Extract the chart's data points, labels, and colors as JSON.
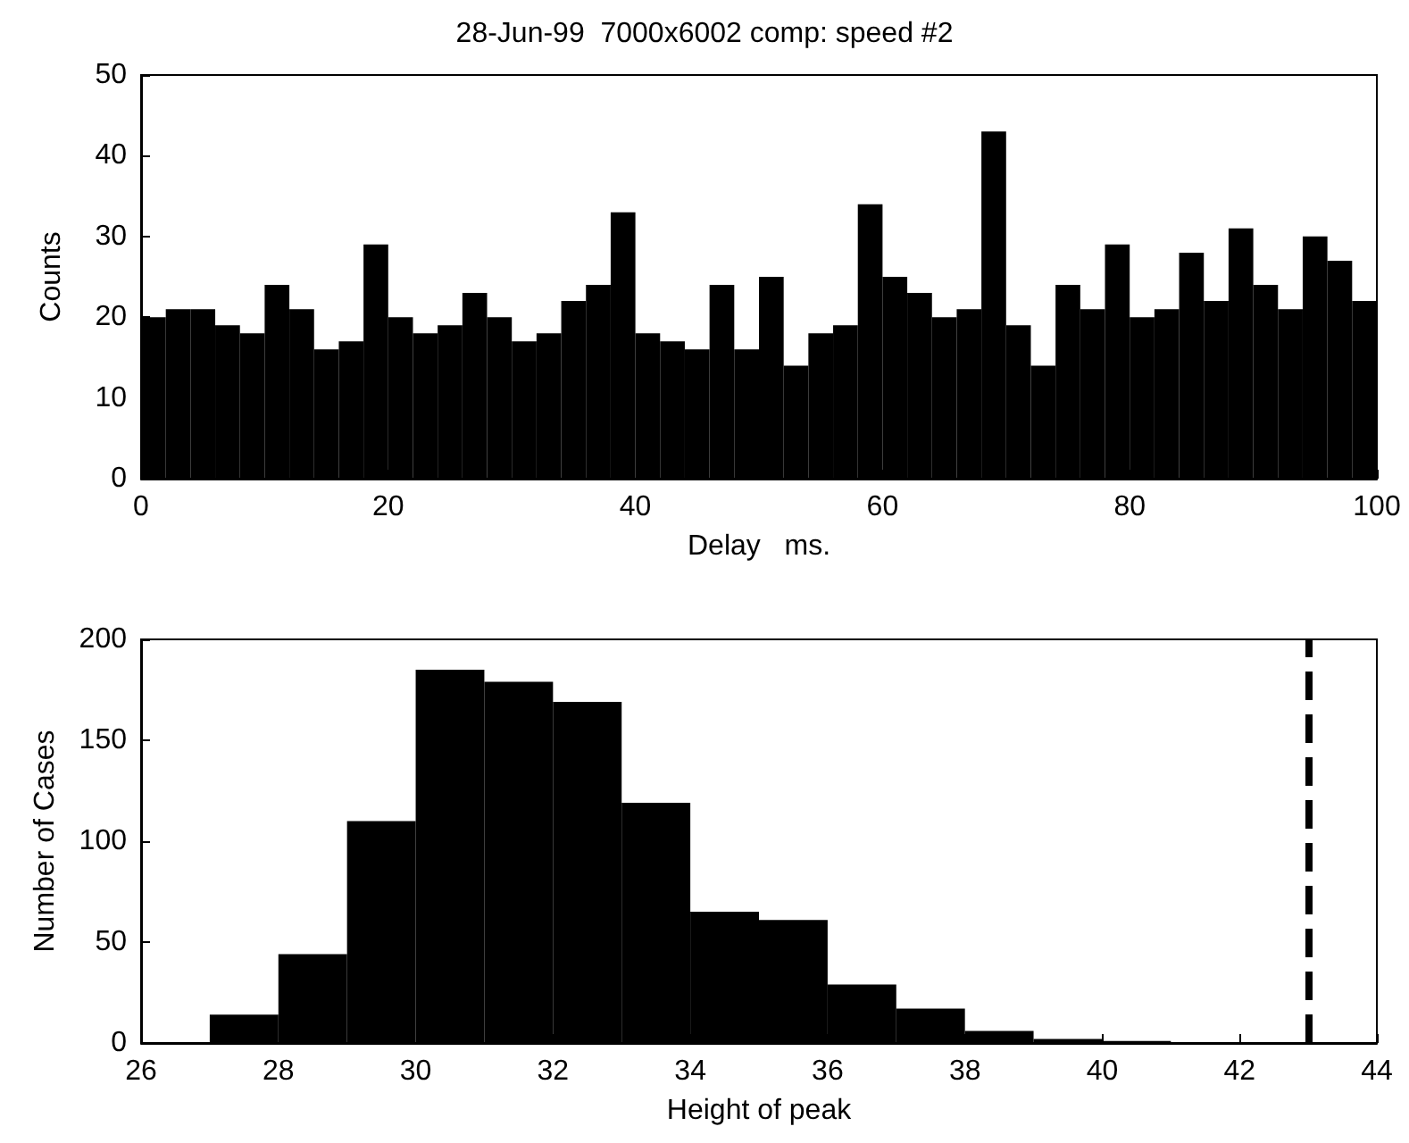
{
  "chart_data": [
    {
      "type": "histogram",
      "title": "28-Jun-99  7000x6002 comp: speed #2",
      "xlabel": "Delay   ms.",
      "ylabel": "Counts",
      "color": "#000000",
      "bins": [
        0,
        2,
        4,
        6,
        8,
        10,
        12,
        14,
        16,
        18,
        20,
        22,
        24,
        26,
        28,
        30,
        32,
        34,
        36,
        38,
        40,
        42,
        44,
        46,
        48,
        50,
        52,
        54,
        56,
        58,
        60,
        62,
        64,
        66,
        68,
        70,
        72,
        74,
        76,
        78,
        80,
        82,
        84,
        86,
        88,
        90,
        92,
        94,
        96,
        98,
        100
      ],
      "values": [
        20,
        21,
        21,
        19,
        18,
        24,
        21,
        16,
        17,
        29,
        20,
        18,
        19,
        23,
        20,
        17,
        18,
        22,
        24,
        33,
        18,
        17,
        16,
        24,
        16,
        25,
        14,
        18,
        19,
        34,
        25,
        23,
        20,
        21,
        43,
        19,
        14,
        24,
        21,
        29,
        20,
        21,
        28,
        22,
        31,
        24,
        21,
        30,
        27,
        22
      ],
      "xlim": [
        0,
        100
      ],
      "xticks": [
        0,
        20,
        40,
        60,
        80,
        100
      ],
      "ylim": [
        0,
        50
      ],
      "yticks": [
        0,
        10,
        20,
        30,
        40,
        50
      ],
      "grid": false
    },
    {
      "type": "histogram",
      "xlabel": "Height of peak",
      "ylabel": "Number of Cases",
      "color": "#000000",
      "bins": [
        27,
        28,
        29,
        30,
        31,
        32,
        33,
        34,
        35,
        36,
        37,
        38,
        39,
        40,
        41
      ],
      "values": [
        14,
        44,
        110,
        185,
        179,
        169,
        119,
        65,
        61,
        29,
        17,
        6,
        2,
        1
      ],
      "xlim": [
        26,
        44
      ],
      "xticks": [
        26,
        28,
        30,
        32,
        34,
        36,
        38,
        40,
        42,
        44
      ],
      "ylim": [
        0,
        200
      ],
      "yticks": [
        0,
        50,
        100,
        150,
        200
      ],
      "grid": false,
      "ref_lines": [
        {
          "axis": "x",
          "value": 43,
          "color": "#000000",
          "line_style": "dashed"
        }
      ]
    }
  ]
}
